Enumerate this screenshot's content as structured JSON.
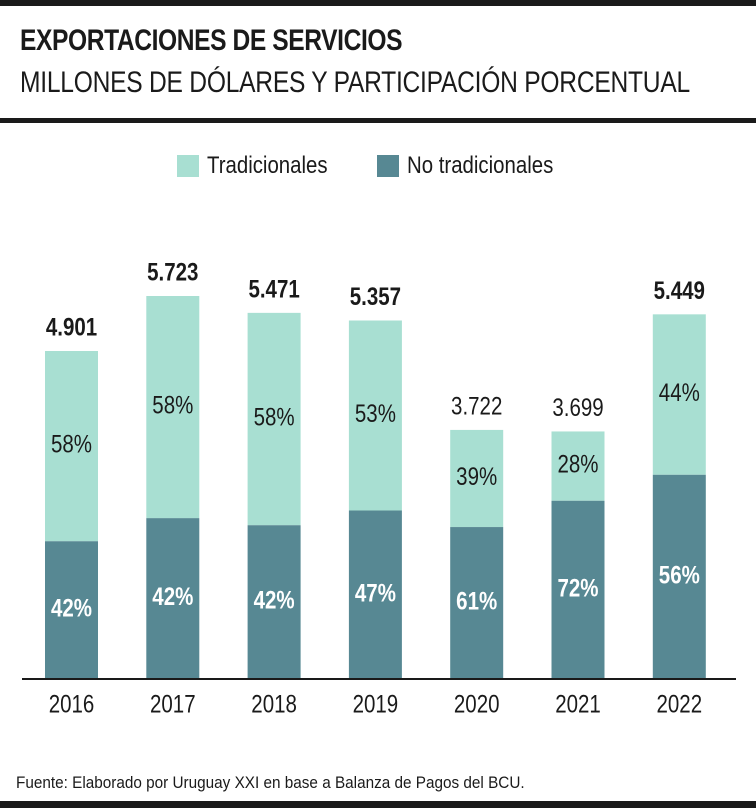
{
  "title": "EXPORTACIONES DE SERVICIOS",
  "subtitle": "MILLONES DE DÓLARES Y PARTICIPACIÓN PORCENTUAL",
  "footer": "Fuente: Elaborado por Uruguay XXI en base a Balanza de Pagos del BCU.",
  "colors": {
    "tradicionales": "#a8dfd2",
    "no_tradicionales": "#578893",
    "text": "#1a1a1a",
    "axis": "#1a1a1a"
  },
  "legend": {
    "tradicionales": "Tradicionales",
    "no_tradicionales": "No tradicionales"
  },
  "chart_data": {
    "type": "bar",
    "stacked": true,
    "categories": [
      "2016",
      "2017",
      "2018",
      "2019",
      "2020",
      "2021",
      "2022"
    ],
    "totals": [
      4901,
      5723,
      5471,
      5357,
      3722,
      3699,
      5449
    ],
    "total_labels": [
      "4.901",
      "5.723",
      "5.471",
      "5.357",
      "3.722",
      "3.699",
      "5.449"
    ],
    "total_labels_bold": [
      true,
      true,
      true,
      true,
      false,
      false,
      true
    ],
    "series": [
      {
        "name": "No tradicionales",
        "percent_labels": [
          "42%",
          "42%",
          "42%",
          "47%",
          "61%",
          "72%",
          "56%"
        ],
        "percent": [
          42,
          42,
          42,
          47,
          61,
          72,
          56
        ]
      },
      {
        "name": "Tradicionales",
        "percent_labels": [
          "58%",
          "58%",
          "58%",
          "53%",
          "39%",
          "28%",
          "44%"
        ],
        "percent": [
          58,
          58,
          58,
          53,
          39,
          28,
          44
        ]
      }
    ],
    "ylim": [
      0,
      5723
    ],
    "grid": false,
    "legend_position": "top-center"
  }
}
